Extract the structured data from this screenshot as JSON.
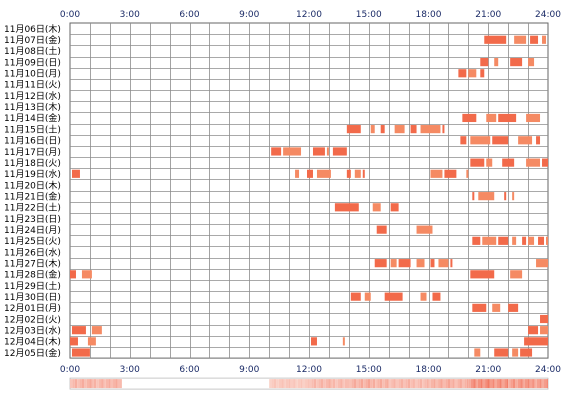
{
  "colors": {
    "activity": "#f26a4a",
    "activity_alt": "#f58a63",
    "grid": "#8c8c8c",
    "border": "#666666",
    "label": "#000000",
    "axis_text": "#1a2a66",
    "density_low": "#fde9e3",
    "density_high": "#f06f58"
  },
  "chart_data": {
    "type": "heatmap",
    "x_ticks": [
      "0:00",
      "3:00",
      "6:00",
      "9:00",
      "12:00",
      "15:00",
      "18:00",
      "21:00",
      "24:00"
    ],
    "x_range": [
      0,
      24
    ],
    "grid": true,
    "rows": [
      {
        "label": "11月06日(木)",
        "intervals": []
      },
      {
        "label": "11月07日(金)",
        "intervals": [
          [
            20.8,
            21.9
          ],
          [
            22.3,
            22.9
          ],
          [
            23.1,
            23.5
          ],
          [
            23.7,
            23.9
          ]
        ]
      },
      {
        "label": "11月08日(土)",
        "intervals": []
      },
      {
        "label": "11月09日(日)",
        "intervals": [
          [
            20.6,
            21.0
          ],
          [
            21.3,
            21.5
          ],
          [
            22.1,
            22.7
          ],
          [
            23.0,
            23.3
          ]
        ]
      },
      {
        "label": "11月10日(月)",
        "intervals": [
          [
            19.5,
            19.9
          ],
          [
            20.0,
            20.4
          ],
          [
            20.6,
            20.8
          ]
        ]
      },
      {
        "label": "11月11日(火)",
        "intervals": []
      },
      {
        "label": "11月12日(水)",
        "intervals": []
      },
      {
        "label": "11月13日(木)",
        "intervals": []
      },
      {
        "label": "11月14日(金)",
        "intervals": [
          [
            19.7,
            20.4
          ],
          [
            20.9,
            21.4
          ],
          [
            21.5,
            22.4
          ],
          [
            22.9,
            23.6
          ]
        ]
      },
      {
        "label": "11月15日(土)",
        "intervals": [
          [
            13.9,
            14.6
          ],
          [
            15.1,
            15.3
          ],
          [
            15.6,
            15.8
          ],
          [
            16.3,
            16.8
          ],
          [
            17.1,
            17.4
          ],
          [
            17.6,
            18.6
          ],
          [
            18.7,
            18.8
          ]
        ]
      },
      {
        "label": "11月16日(日)",
        "intervals": [
          [
            19.6,
            19.9
          ],
          [
            20.1,
            21.1
          ],
          [
            21.2,
            22.0
          ],
          [
            22.5,
            23.2
          ],
          [
            23.4,
            23.6
          ]
        ]
      },
      {
        "label": "11月17日(月)",
        "intervals": [
          [
            10.1,
            10.6
          ],
          [
            10.7,
            11.6
          ],
          [
            12.2,
            12.8
          ],
          [
            12.9,
            13.0
          ],
          [
            13.2,
            13.9
          ]
        ]
      },
      {
        "label": "11月18日(火)",
        "intervals": [
          [
            20.1,
            20.8
          ],
          [
            20.9,
            21.2
          ],
          [
            21.7,
            22.3
          ],
          [
            22.9,
            23.6
          ],
          [
            23.7,
            24.0
          ]
        ]
      },
      {
        "label": "11月19日(水)",
        "intervals": [
          [
            0.1,
            0.5
          ],
          [
            11.3,
            11.5
          ],
          [
            11.9,
            12.2
          ],
          [
            12.4,
            13.1
          ],
          [
            13.9,
            14.1
          ],
          [
            14.3,
            14.6
          ],
          [
            14.7,
            14.8
          ],
          [
            18.1,
            18.7
          ],
          [
            18.8,
            19.4
          ],
          [
            19.9,
            20.0
          ]
        ]
      },
      {
        "label": "11月20日(木)",
        "intervals": []
      },
      {
        "label": "11月21日(金)",
        "intervals": [
          [
            20.2,
            20.3
          ],
          [
            20.5,
            21.3
          ],
          [
            21.8,
            21.9
          ],
          [
            22.2,
            22.3
          ]
        ]
      },
      {
        "label": "11月22日(土)",
        "intervals": [
          [
            13.3,
            14.5
          ],
          [
            15.2,
            15.6
          ],
          [
            16.1,
            16.5
          ]
        ]
      },
      {
        "label": "11月23日(日)",
        "intervals": []
      },
      {
        "label": "11月24日(月)",
        "intervals": [
          [
            15.4,
            15.9
          ],
          [
            17.4,
            18.2
          ]
        ]
      },
      {
        "label": "11月25日(火)",
        "intervals": [
          [
            20.2,
            20.6
          ],
          [
            20.7,
            21.4
          ],
          [
            21.5,
            22.0
          ],
          [
            22.2,
            22.4
          ],
          [
            22.7,
            22.9
          ],
          [
            23.0,
            23.3
          ],
          [
            23.5,
            23.8
          ],
          [
            23.9,
            24.0
          ]
        ]
      },
      {
        "label": "11月26日(水)",
        "intervals": []
      },
      {
        "label": "11月27日(木)",
        "intervals": [
          [
            15.3,
            15.9
          ],
          [
            16.1,
            16.4
          ],
          [
            16.5,
            17.1
          ],
          [
            17.4,
            17.8
          ],
          [
            18.1,
            18.3
          ],
          [
            18.5,
            19.0
          ],
          [
            19.1,
            19.2
          ],
          [
            23.4,
            24.0
          ]
        ]
      },
      {
        "label": "11月28日(金)",
        "intervals": [
          [
            0.0,
            0.3
          ],
          [
            0.6,
            1.1
          ],
          [
            20.1,
            21.3
          ],
          [
            22.1,
            22.7
          ]
        ]
      },
      {
        "label": "11月29日(土)",
        "intervals": []
      },
      {
        "label": "11月30日(日)",
        "intervals": [
          [
            14.1,
            14.6
          ],
          [
            14.8,
            15.1
          ],
          [
            15.8,
            16.7
          ],
          [
            17.6,
            17.9
          ],
          [
            18.2,
            18.6
          ]
        ]
      },
      {
        "label": "12月01日(月)",
        "intervals": [
          [
            20.2,
            20.9
          ],
          [
            21.2,
            21.6
          ],
          [
            22.0,
            22.5
          ]
        ]
      },
      {
        "label": "12月02日(火)",
        "intervals": [
          [
            23.6,
            24.0
          ]
        ]
      },
      {
        "label": "12月03日(水)",
        "intervals": [
          [
            0.1,
            0.8
          ],
          [
            1.1,
            1.6
          ],
          [
            23.0,
            23.5
          ],
          [
            23.6,
            24.0
          ]
        ]
      },
      {
        "label": "12月04日(木)",
        "intervals": [
          [
            0.0,
            0.4
          ],
          [
            0.9,
            1.3
          ],
          [
            12.1,
            12.4
          ],
          [
            13.7,
            13.8
          ],
          [
            22.8,
            24.0
          ]
        ]
      },
      {
        "label": "12月05日(金)",
        "intervals": [
          [
            0.1,
            1.0
          ],
          [
            20.3,
            20.6
          ],
          [
            21.3,
            22.0
          ],
          [
            22.2,
            22.5
          ],
          [
            22.6,
            23.2
          ]
        ]
      }
    ],
    "density_strip": {
      "segments": [
        {
          "from": 0.0,
          "to": 2.6,
          "level": 0.55
        },
        {
          "from": 2.6,
          "to": 10.0,
          "level": 0.0
        },
        {
          "from": 10.0,
          "to": 12.0,
          "level": 0.35
        },
        {
          "from": 12.0,
          "to": 14.0,
          "level": 0.5
        },
        {
          "from": 14.0,
          "to": 16.0,
          "level": 0.6
        },
        {
          "from": 16.0,
          "to": 18.0,
          "level": 0.5
        },
        {
          "from": 18.0,
          "to": 20.0,
          "level": 0.6
        },
        {
          "from": 20.0,
          "to": 22.0,
          "level": 0.95
        },
        {
          "from": 22.0,
          "to": 24.0,
          "level": 0.85
        }
      ]
    }
  }
}
